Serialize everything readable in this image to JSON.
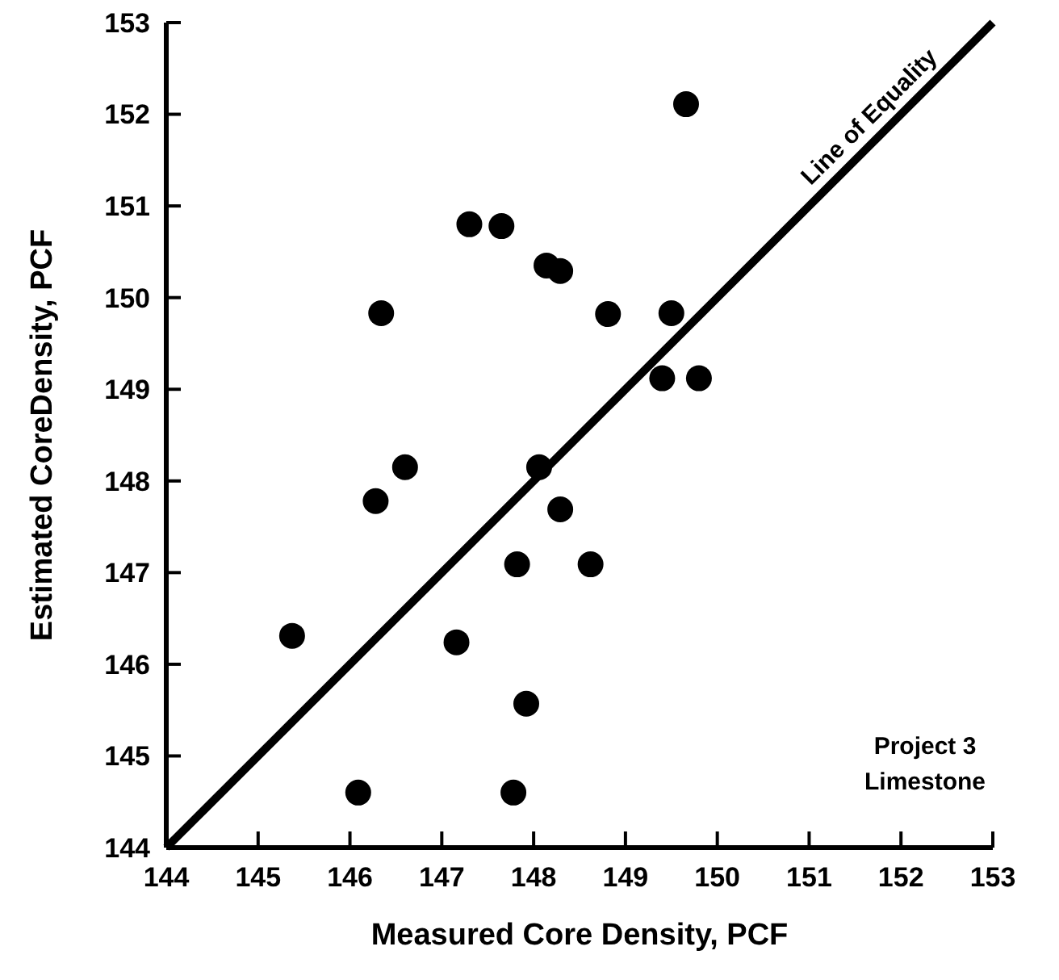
{
  "chart_data": {
    "type": "scatter",
    "xlabel": "Measured Core Density, PCF",
    "ylabel": "Estimated CoreDensity, PCF",
    "xlim": [
      144,
      153
    ],
    "ylim": [
      144,
      153
    ],
    "xticks": [
      144,
      145,
      146,
      147,
      148,
      149,
      150,
      151,
      152,
      153
    ],
    "yticks": [
      144,
      145,
      146,
      147,
      148,
      149,
      150,
      151,
      152,
      153
    ],
    "grid": false,
    "marker": "circle",
    "series": [
      {
        "color": "#000000",
        "x": [
          149.66,
          147.3,
          147.65,
          148.14,
          148.29,
          146.34,
          148.81,
          149.5,
          149.4,
          149.8,
          146.6,
          148.06,
          146.28,
          148.29,
          147.82,
          148.62,
          145.37,
          147.16,
          147.92,
          146.09,
          147.78
        ],
        "values": [
          152.11,
          150.8,
          150.78,
          150.35,
          150.29,
          149.83,
          149.82,
          149.83,
          149.12,
          149.12,
          148.15,
          148.15,
          147.78,
          147.69,
          147.09,
          147.09,
          146.31,
          146.24,
          145.57,
          144.6,
          144.6
        ]
      },
      {
        "type": "line",
        "name": "Line of Equality",
        "color": "#000000",
        "line_style": "solid",
        "marker": "none",
        "x": [
          144,
          153
        ],
        "values": [
          144,
          153
        ]
      }
    ],
    "annotations": [
      "Project 3\nLimestone"
    ]
  }
}
